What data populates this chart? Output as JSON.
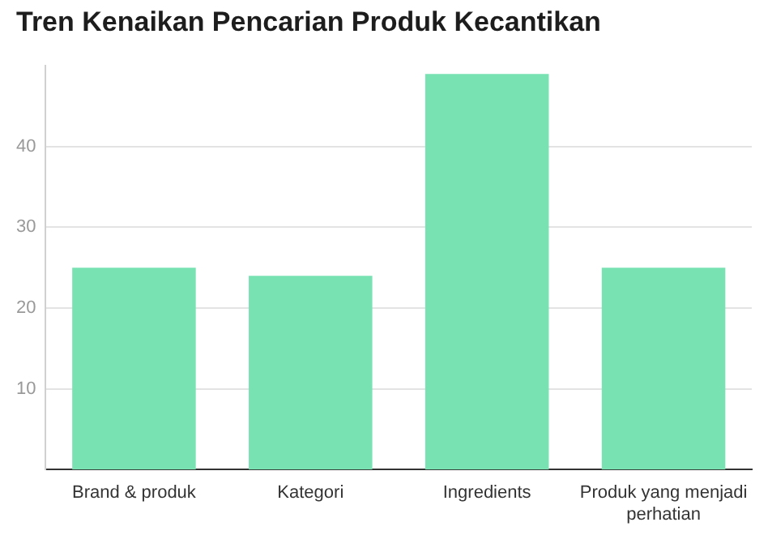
{
  "chart_data": {
    "type": "bar",
    "title": "Tren Kenaikan Pencarian Produk Kecantikan",
    "categories": [
      "Brand & produk",
      "Kategori",
      "Ingredients",
      "Produk yang menjadi perhatian"
    ],
    "values": [
      25,
      24,
      49,
      25
    ],
    "color": "#79e2b3",
    "ylim": [
      0,
      50
    ],
    "yticks": [
      10,
      20,
      30,
      40
    ],
    "grid": "y"
  }
}
